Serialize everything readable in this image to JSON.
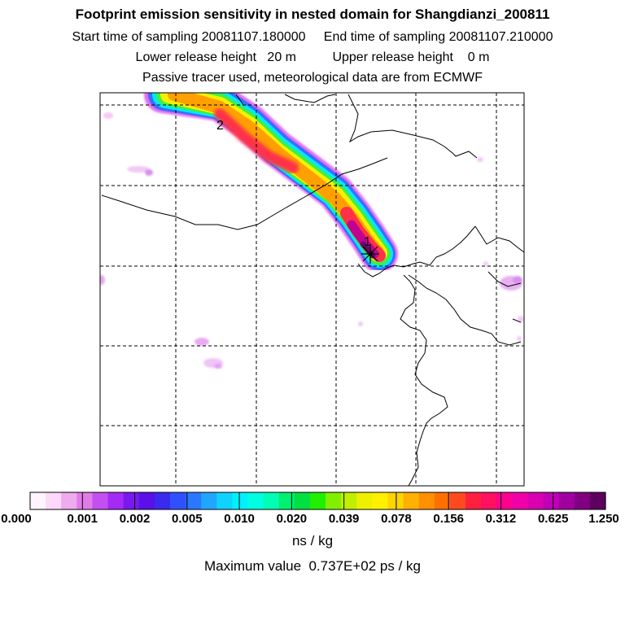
{
  "header": {
    "title": "Footprint emission sensitivity in nested domain for Shangdianzi_200811",
    "start_label": "Start time of sampling 20081107.180000",
    "end_label": "End time of sampling 20081107.210000",
    "lower_label": "Lower release height   20 m",
    "upper_label": "Upper release height    0 m",
    "tracer_label": "Passive tracer used, meteorological data are from ECMWF"
  },
  "map": {
    "markers": [
      {
        "label": "1",
        "kind": "release-site"
      },
      {
        "label": "2",
        "kind": "trajectory-point"
      }
    ]
  },
  "colorbar": {
    "ticks": [
      "0.000",
      "0.001",
      "0.002",
      "0.005",
      "0.010",
      "0.020",
      "0.039",
      "0.078",
      "0.156",
      "0.312",
      "0.625",
      "1.250"
    ],
    "colors": [
      "#fff4ff",
      "#ffd8fb",
      "#f0aaf0",
      "#e07ce8",
      "#c44ff0",
      "#a62af5",
      "#7a18f0",
      "#5a10e8",
      "#3a2aee",
      "#3050ff",
      "#2a78ff",
      "#20a6ff",
      "#10d2ff",
      "#00f0ff",
      "#00ffe0",
      "#00ffb4",
      "#00f070",
      "#00e040",
      "#20f000",
      "#80f000",
      "#c0f000",
      "#eef000",
      "#fff000",
      "#ffd400",
      "#ffb000",
      "#ff9000",
      "#ff7000",
      "#ff4a20",
      "#ff2040",
      "#ff1060",
      "#ff0090",
      "#f000a8",
      "#d800b0",
      "#c000b8",
      "#a000a0",
      "#800080",
      "#5e005e"
    ],
    "units": "ns / kg",
    "max_value": "Maximum value  0.737E+02 ps / kg"
  },
  "colors": {
    "plume_outer": "#e06cf0",
    "plume_blue": "#3c6cff",
    "plume_cyan": "#00e8ff",
    "plume_green": "#40f040",
    "plume_yellow": "#f8f000",
    "plume_orange": "#ffa000",
    "plume_red": "#ff3048",
    "plume_core": "#c00090",
    "plume_peak": "#700070"
  }
}
